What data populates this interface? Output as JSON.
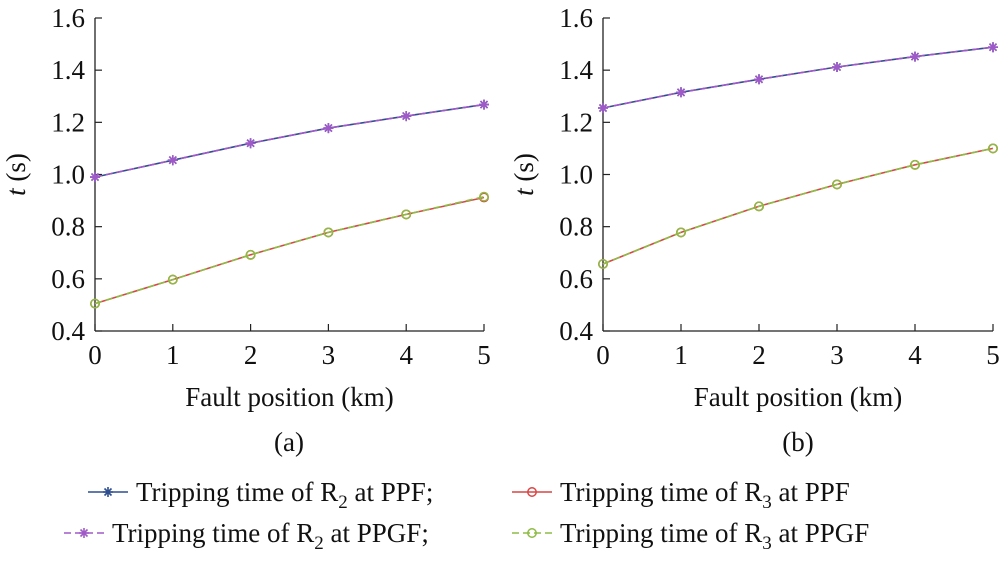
{
  "chart_data": [
    {
      "type": "line",
      "panel_label": "(a)",
      "xlabel": "Fault position (km)",
      "ylabel": "t (s)",
      "xlim": [
        0,
        5
      ],
      "ylim": [
        0.4,
        1.6
      ],
      "x_ticks": [
        0,
        1,
        2,
        3,
        4,
        5
      ],
      "y_ticks": [
        "0.4",
        "0.6",
        "0.8",
        "1.0",
        "1.2",
        "1.4",
        "1.6"
      ],
      "grid": false,
      "x": [
        0,
        1,
        2,
        3,
        4,
        5
      ],
      "series": [
        {
          "key": "r2_ppf",
          "values": [
            0.99,
            1.055,
            1.12,
            1.178,
            1.224,
            1.268
          ]
        },
        {
          "key": "r3_ppf",
          "values": [
            0.505,
            0.597,
            0.692,
            0.778,
            0.847,
            0.912
          ]
        },
        {
          "key": "r2_ppgf",
          "values": [
            0.99,
            1.055,
            1.12,
            1.178,
            1.224,
            1.268
          ]
        },
        {
          "key": "r3_ppgf",
          "values": [
            0.505,
            0.597,
            0.692,
            0.778,
            0.847,
            0.915
          ]
        }
      ]
    },
    {
      "type": "line",
      "panel_label": "(b)",
      "xlabel": "Fault position (km)",
      "ylabel": "t (s)",
      "xlim": [
        0,
        5
      ],
      "ylim": [
        0.4,
        1.6
      ],
      "x_ticks": [
        0,
        1,
        2,
        3,
        4,
        5
      ],
      "y_ticks": [
        "0.4",
        "0.6",
        "0.8",
        "1.0",
        "1.2",
        "1.4",
        "1.6"
      ],
      "grid": false,
      "x": [
        0,
        1,
        2,
        3,
        4,
        5
      ],
      "series": [
        {
          "key": "r2_ppf",
          "values": [
            1.255,
            1.315,
            1.365,
            1.412,
            1.452,
            1.488
          ]
        },
        {
          "key": "r3_ppf",
          "values": [
            0.657,
            0.778,
            0.878,
            0.962,
            1.037,
            1.1
          ]
        },
        {
          "key": "r2_ppgf",
          "values": [
            1.255,
            1.315,
            1.365,
            1.412,
            1.452,
            1.488
          ]
        },
        {
          "key": "r3_ppgf",
          "values": [
            0.657,
            0.778,
            0.878,
            0.962,
            1.037,
            1.1
          ]
        }
      ]
    }
  ],
  "legend": {
    "placement": "bottom",
    "entries": [
      {
        "key": "r2_ppf",
        "pre": "Tripping time of R",
        "sub": "2",
        "post": " at PPF;",
        "color": "#2e4e8f",
        "line_style": "solid",
        "marker": "star"
      },
      {
        "key": "r3_ppf",
        "pre": "Tripping time of R",
        "sub": "3",
        "post": " at PPF",
        "color": "#d94545",
        "line_style": "solid",
        "marker": "circle"
      },
      {
        "key": "r2_ppgf",
        "pre": "Tripping time of R",
        "sub": "2",
        "post": " at PPGF;",
        "color": "#a05ac8",
        "line_style": "dashed",
        "marker": "star"
      },
      {
        "key": "r3_ppgf",
        "pre": "Tripping time of R",
        "sub": "3",
        "post": " at PPGF",
        "color": "#8dbb44",
        "line_style": "dashed",
        "marker": "circle"
      }
    ]
  }
}
